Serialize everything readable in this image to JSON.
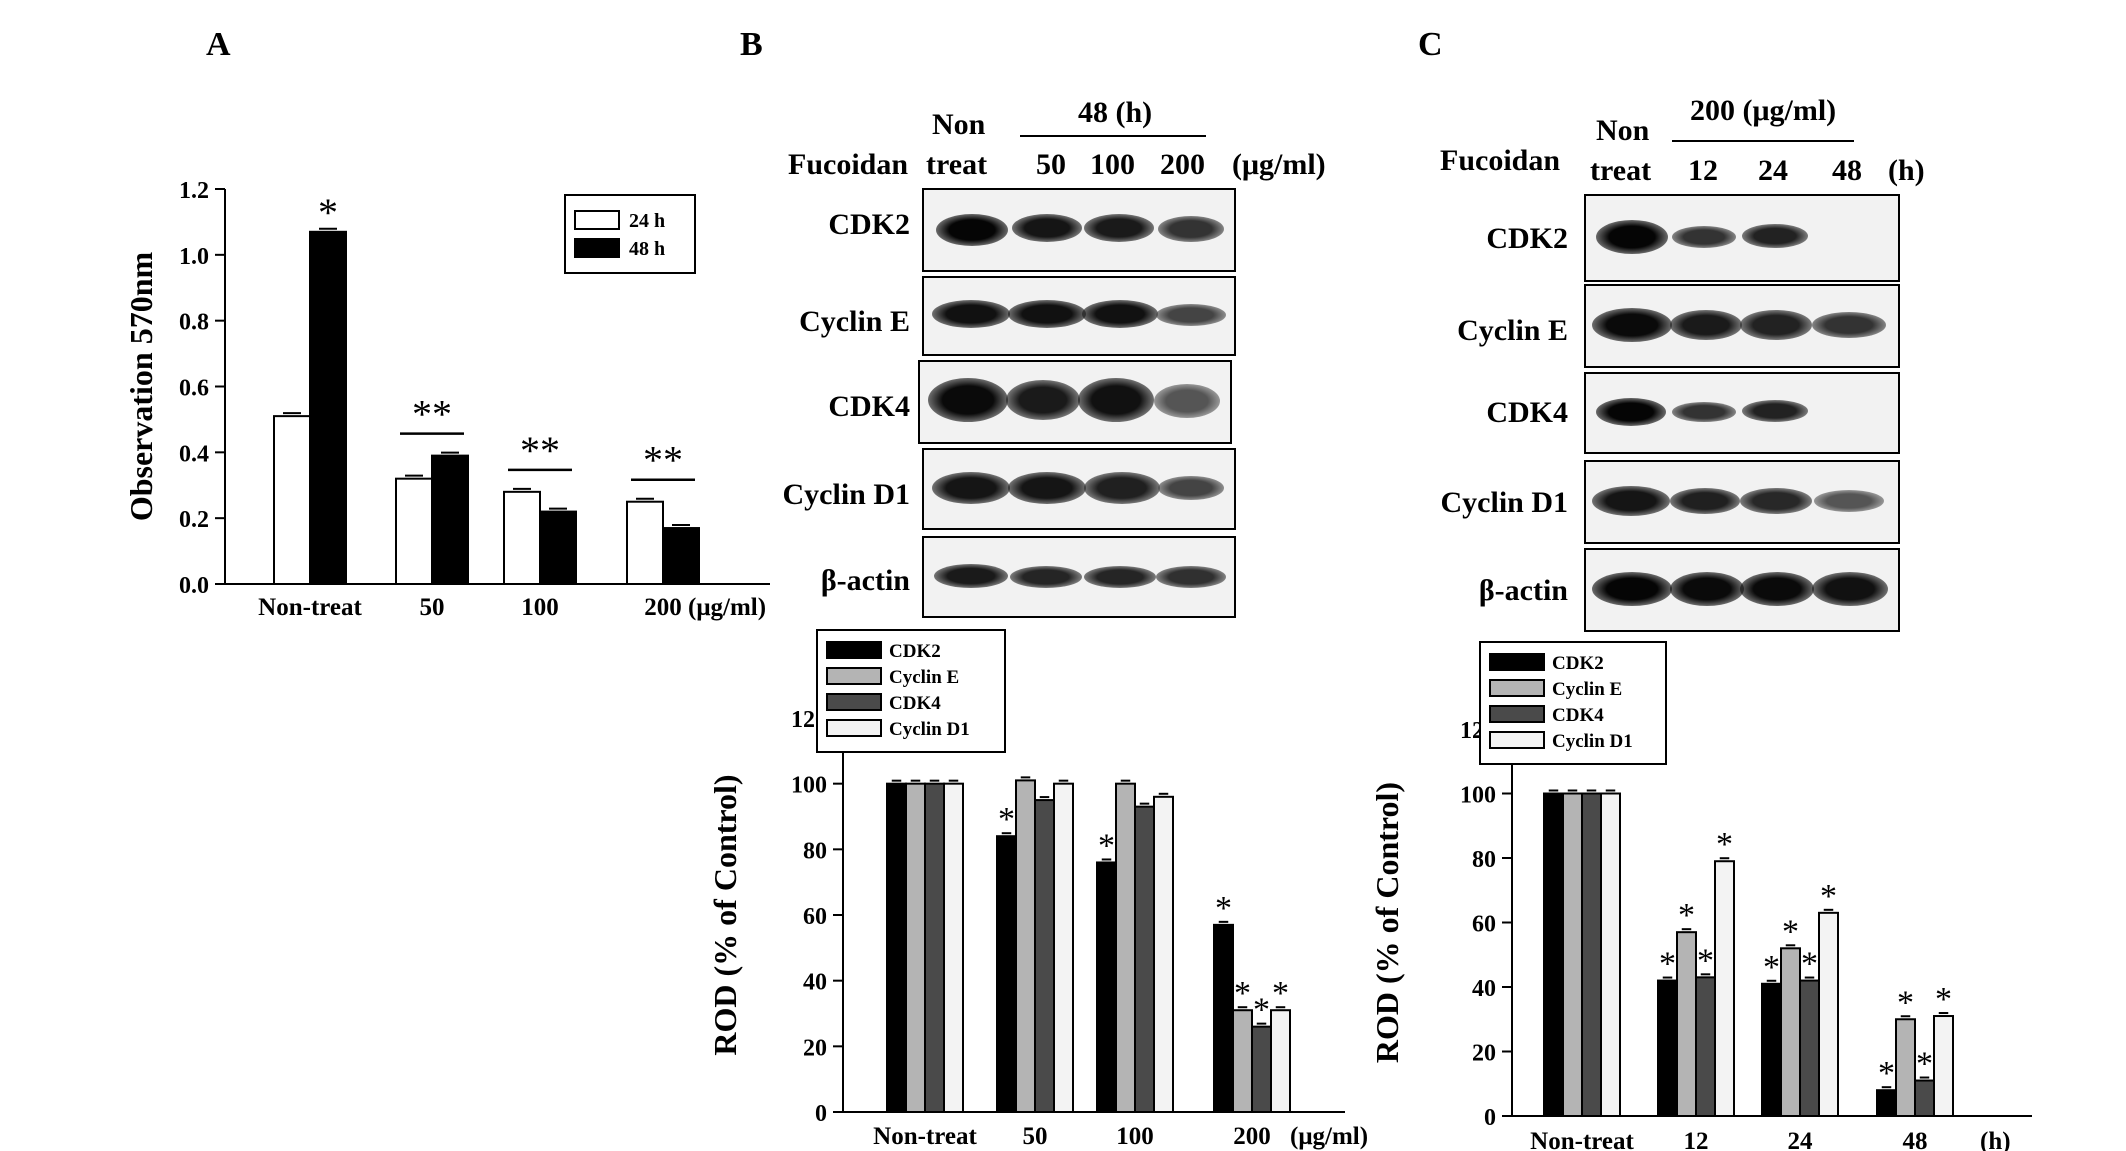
{
  "panels": {
    "a": {
      "letter": "A"
    },
    "b": {
      "letter": "B",
      "fucoidan_label": "Fucoidan",
      "non_label_1": "Non",
      "non_label_2": "treat",
      "time_group": "48 (h)",
      "doses": [
        "50",
        "100",
        "200"
      ],
      "dose_unit": "(μg/ml)",
      "blot_rows": [
        "CDK2",
        "Cyclin E",
        "CDK4",
        "Cyclin D1",
        "β-actin"
      ]
    },
    "c": {
      "letter": "C",
      "fucoidan_label": "Fucoidan",
      "non_label_1": "Non",
      "non_label_2": "treat",
      "dose_group": "200 (μg/ml)",
      "times": [
        "12",
        "24",
        "48"
      ],
      "time_unit": "(h)",
      "blot_rows": [
        "CDK2",
        "Cyclin E",
        "CDK4",
        "Cyclin D1",
        "β-actin"
      ]
    }
  },
  "chart_data": [
    {
      "type": "bar",
      "panel": "A",
      "categories": [
        "Non-treat",
        "50",
        "100",
        "200"
      ],
      "x_unit_label": "(μg/ml)",
      "ylabel": "Observation 570nm",
      "ylim": [
        0,
        1.2
      ],
      "yticks": [
        "0.0",
        "0.2",
        "0.4",
        "0.6",
        "0.8",
        "1.0",
        "1.2"
      ],
      "series": [
        {
          "name": "24 h",
          "values": [
            0.51,
            0.32,
            0.28,
            0.25
          ],
          "color": "#ffffff"
        },
        {
          "name": "48 h",
          "values": [
            1.07,
            0.39,
            0.22,
            0.17
          ],
          "color": "#000000"
        }
      ],
      "annotations": [
        {
          "category": 0,
          "text": "*"
        },
        {
          "category": 1,
          "text": "**"
        },
        {
          "category": 2,
          "text": "**"
        },
        {
          "category": 3,
          "text": "**"
        }
      ],
      "legend": "top-right"
    },
    {
      "type": "bar",
      "panel": "B",
      "categories": [
        "Non-treat",
        "50",
        "100",
        "200"
      ],
      "x_unit_label": "(μg/ml)",
      "ylabel": "ROD (% of Control)",
      "ylim": [
        0,
        120
      ],
      "yticks": [
        "0",
        "20",
        "40",
        "60",
        "80",
        "100",
        "120"
      ],
      "series": [
        {
          "name": "CDK2",
          "values": [
            100,
            84,
            76,
            57
          ],
          "color": "#000000"
        },
        {
          "name": "Cyclin E",
          "values": [
            100,
            101,
            100,
            31
          ],
          "color": "#b4b4b4"
        },
        {
          "name": "CDK4",
          "values": [
            100,
            95,
            93,
            26
          ],
          "color": "#4a4a4a"
        },
        {
          "name": "Cyclin D1",
          "values": [
            100,
            100,
            96,
            31
          ],
          "color": "#f3f3f3"
        }
      ],
      "star_marks": [
        [
          false,
          false,
          false,
          false
        ],
        [
          true,
          false,
          false,
          false
        ],
        [
          true,
          false,
          false,
          false
        ],
        [
          true,
          true,
          true,
          true
        ]
      ],
      "legend": "top-left"
    },
    {
      "type": "bar",
      "panel": "C",
      "categories": [
        "Non-treat",
        "12",
        "24",
        "48"
      ],
      "x_unit_label": "(h)",
      "ylabel": "ROD (% of Control)",
      "ylim": [
        0,
        120
      ],
      "yticks": [
        "0",
        "20",
        "40",
        "60",
        "80",
        "100",
        "120"
      ],
      "series": [
        {
          "name": "CDK2",
          "values": [
            100,
            42,
            41,
            8
          ],
          "color": "#000000"
        },
        {
          "name": "Cyclin E",
          "values": [
            100,
            57,
            52,
            30
          ],
          "color": "#b4b4b4"
        },
        {
          "name": "CDK4",
          "values": [
            100,
            43,
            42,
            11
          ],
          "color": "#4a4a4a"
        },
        {
          "name": "Cyclin D1",
          "values": [
            100,
            79,
            63,
            31
          ],
          "color": "#f3f3f3"
        }
      ],
      "star_marks": [
        [
          false,
          false,
          false,
          false
        ],
        [
          true,
          true,
          true,
          true
        ],
        [
          true,
          true,
          true,
          true
        ],
        [
          true,
          true,
          true,
          true
        ]
      ],
      "legend": "top-left"
    }
  ]
}
